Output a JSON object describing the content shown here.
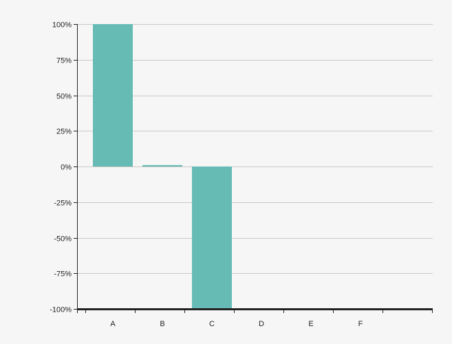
{
  "chart_data": {
    "type": "bar",
    "categories": [
      "A",
      "B",
      "C",
      "D",
      "E",
      "F"
    ],
    "values": [
      100,
      1,
      -100,
      null,
      null,
      null
    ],
    "ylim": [
      -100,
      100
    ],
    "yticks": [
      100,
      75,
      50,
      25,
      0,
      -25,
      -50,
      -75,
      -100
    ],
    "ytick_labels": [
      "100%",
      "75%",
      "50%",
      "25%",
      "0%",
      "-25%",
      "-50%",
      "-75%",
      "-100%"
    ],
    "title": "",
    "xlabel": "",
    "ylabel": "",
    "grid": true,
    "legend": "none",
    "colors": {
      "bar": "#66bcb4",
      "grid": "#c8c8c8",
      "axis": "#222222",
      "background": "#f6f6f6"
    }
  }
}
